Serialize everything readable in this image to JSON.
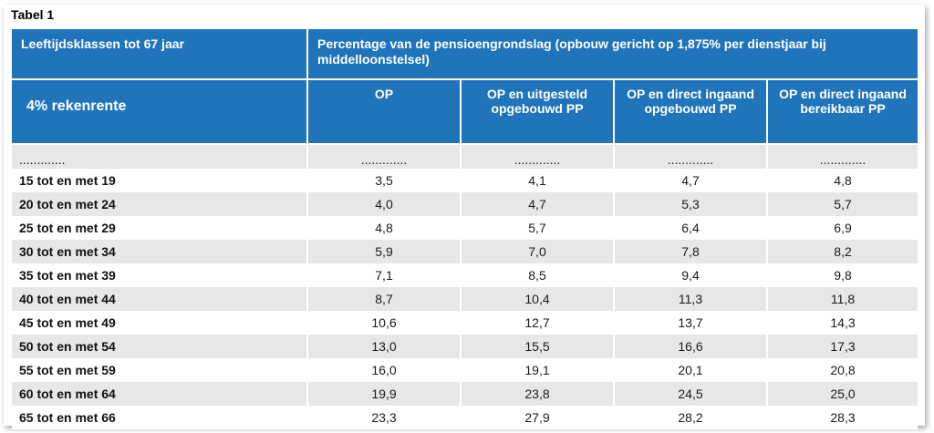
{
  "caption": "Tabel 1",
  "header": {
    "row1": {
      "col1": "Leeftijdsklassen tot 67 jaar",
      "col2": "Percentage van de pensioengrondslag (opbouw gericht op 1,875% per dienstjaar bij middelloonstelsel)"
    },
    "row2": {
      "col1": "4% rekenrente",
      "cols": [
        "OP",
        "OP en uitgesteld opgebouwd PP",
        "OP en direct ingaand opgebouwd PP",
        "OP en direct ingaand bereikbaar PP"
      ]
    }
  },
  "placeholder_row": [
    ".............",
    ".............",
    ".............",
    ".............",
    "............."
  ],
  "rows": [
    {
      "label": "15 tot en met 19",
      "values": [
        "3,5",
        "4,1",
        "4,7",
        "4,8"
      ]
    },
    {
      "label": "20 tot en met 24",
      "values": [
        "4,0",
        "4,7",
        "5,3",
        "5,7"
      ]
    },
    {
      "label": "25 tot en met 29",
      "values": [
        "4,8",
        "5,7",
        "6,4",
        "6,9"
      ]
    },
    {
      "label": "30 tot en met 34",
      "values": [
        "5,9",
        "7,0",
        "7,8",
        "8,2"
      ]
    },
    {
      "label": "35 tot en met 39",
      "values": [
        "7,1",
        "8,5",
        "9,4",
        "9,8"
      ]
    },
    {
      "label": "40 tot en met 44",
      "values": [
        "8,7",
        "10,4",
        "11,3",
        "11,8"
      ]
    },
    {
      "label": "45 tot en met 49",
      "values": [
        "10,6",
        "12,7",
        "13,7",
        "14,3"
      ]
    },
    {
      "label": "50 tot en met 54",
      "values": [
        "13,0",
        "15,5",
        "16,6",
        "17,3"
      ]
    },
    {
      "label": "55 tot en met 59",
      "values": [
        "16,0",
        "19,1",
        "20,1",
        "20,8"
      ]
    },
    {
      "label": "60 tot en met 64",
      "values": [
        "19,9",
        "23,8",
        "24,5",
        "25,0"
      ]
    },
    {
      "label": "65 tot en met 66",
      "values": [
        "23,3",
        "27,9",
        "28,2",
        "28,3"
      ]
    }
  ],
  "colors": {
    "header_blue": "#1f74ba",
    "stripe_grey": "#e6e7e8"
  }
}
